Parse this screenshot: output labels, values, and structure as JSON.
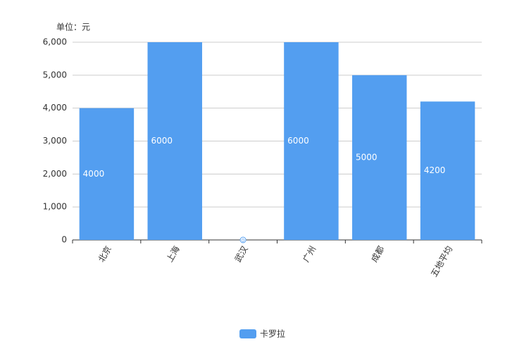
{
  "chart_data": {
    "type": "bar",
    "y_label": "单位：元",
    "categories": [
      "北京",
      "上海",
      "武汉",
      "广州",
      "成都",
      "五地平均"
    ],
    "series": [
      {
        "name": "卡罗拉",
        "color": "#539ef0",
        "values": [
          4000,
          6000,
          0,
          6000,
          5000,
          4200
        ]
      }
    ],
    "ylim": [
      0,
      6000
    ],
    "yticks": [
      0,
      {
        "value": 1000,
        "label": "1,000"
      },
      {
        "value": 2000,
        "label": "2,000"
      },
      {
        "value": 3000,
        "label": "3,000"
      },
      {
        "value": 4000,
        "label": "4,000"
      },
      {
        "value": 5000,
        "label": "5,000"
      },
      {
        "value": 6000,
        "label": "6,000"
      }
    ],
    "grid": true
  }
}
